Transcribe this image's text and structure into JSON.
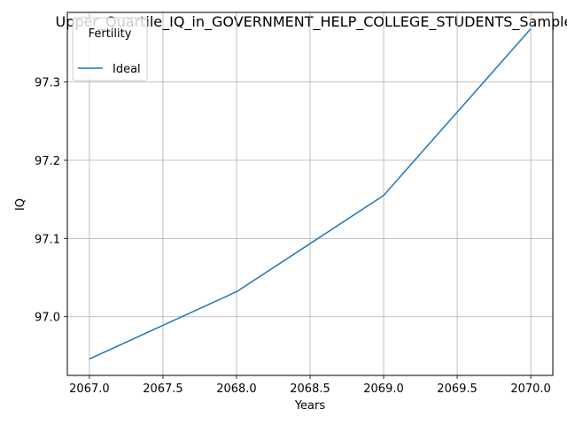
{
  "chart_data": {
    "type": "line",
    "title": "Upper_Quartile_IQ_in_GOVERNMENT_HELP_COLLEGE_STUDENTS_Sample for",
    "xlabel": "Years",
    "ylabel": "IQ",
    "x": [
      2067,
      2068,
      2069,
      2070
    ],
    "series": [
      {
        "name": "Ideal",
        "values": [
          96.946,
          97.032,
          97.155,
          97.368
        ],
        "color": "#1f77b4"
      }
    ],
    "xlim": [
      2066.85,
      2070.15
    ],
    "ylim": [
      96.925,
      97.389
    ],
    "x_ticks": [
      2067.0,
      2067.5,
      2068.0,
      2068.5,
      2069.0,
      2069.5,
      2070.0
    ],
    "x_tick_labels": [
      "2067.0",
      "2067.5",
      "2068.0",
      "2068.5",
      "2069.0",
      "2069.5",
      "2070.0"
    ],
    "y_ticks": [
      97.0,
      97.1,
      97.2,
      97.3
    ],
    "y_tick_labels": [
      "97.0",
      "97.1",
      "97.2",
      "97.3"
    ],
    "grid": true,
    "legend": {
      "title": "Fertility",
      "placement": "upper-left"
    }
  }
}
